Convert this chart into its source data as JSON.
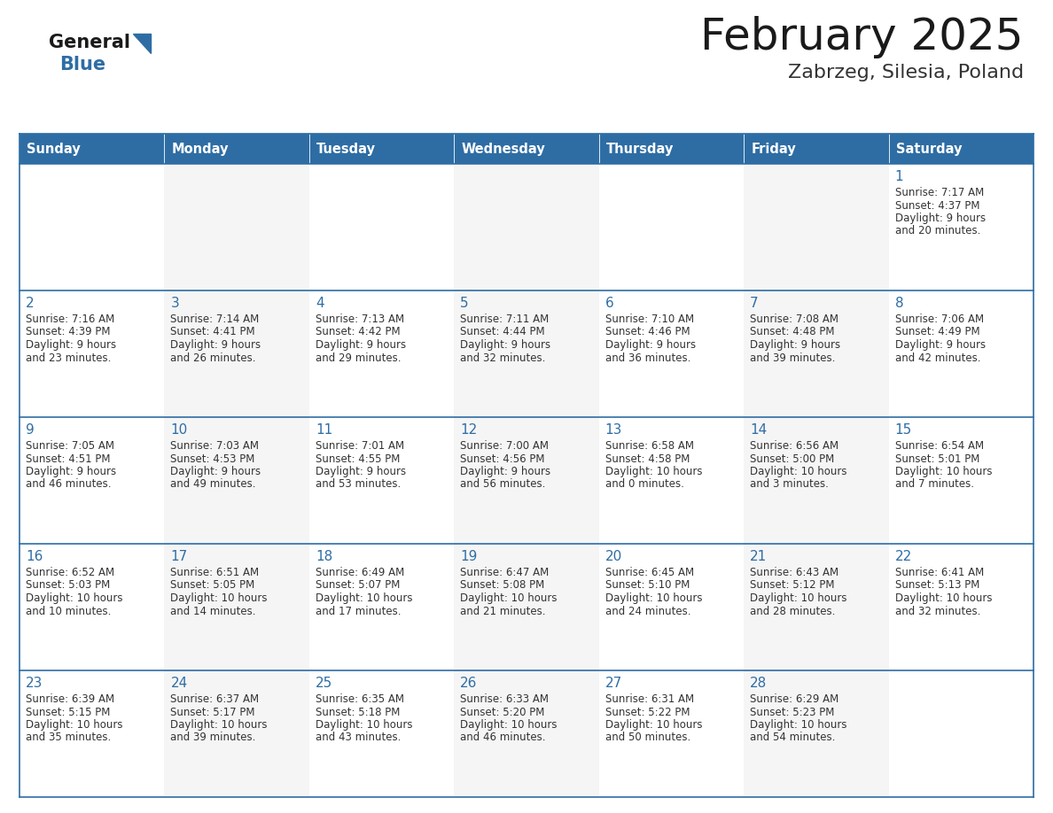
{
  "title": "February 2025",
  "subtitle": "Zabrzeg, Silesia, Poland",
  "days_of_week": [
    "Sunday",
    "Monday",
    "Tuesday",
    "Wednesday",
    "Thursday",
    "Friday",
    "Saturday"
  ],
  "header_bg": "#2E6DA4",
  "header_text": "#FFFFFF",
  "cell_bg": "#FFFFFF",
  "cell_bg_alt": "#F5F5F5",
  "day_number_color": "#2E6DA4",
  "info_text_color": "#333333",
  "border_color": "#2E6DA4",
  "title_color": "#1a1a1a",
  "subtitle_color": "#333333",
  "logo_general_color": "#1a1a1a",
  "logo_blue_color": "#2E6DA4",
  "calendar_data": [
    [
      null,
      null,
      null,
      null,
      null,
      null,
      {
        "day": 1,
        "sunrise": "7:17 AM",
        "sunset": "4:37 PM",
        "daylight": "9 hours and 20 minutes."
      }
    ],
    [
      {
        "day": 2,
        "sunrise": "7:16 AM",
        "sunset": "4:39 PM",
        "daylight": "9 hours and 23 minutes."
      },
      {
        "day": 3,
        "sunrise": "7:14 AM",
        "sunset": "4:41 PM",
        "daylight": "9 hours and 26 minutes."
      },
      {
        "day": 4,
        "sunrise": "7:13 AM",
        "sunset": "4:42 PM",
        "daylight": "9 hours and 29 minutes."
      },
      {
        "day": 5,
        "sunrise": "7:11 AM",
        "sunset": "4:44 PM",
        "daylight": "9 hours and 32 minutes."
      },
      {
        "day": 6,
        "sunrise": "7:10 AM",
        "sunset": "4:46 PM",
        "daylight": "9 hours and 36 minutes."
      },
      {
        "day": 7,
        "sunrise": "7:08 AM",
        "sunset": "4:48 PM",
        "daylight": "9 hours and 39 minutes."
      },
      {
        "day": 8,
        "sunrise": "7:06 AM",
        "sunset": "4:49 PM",
        "daylight": "9 hours and 42 minutes."
      }
    ],
    [
      {
        "day": 9,
        "sunrise": "7:05 AM",
        "sunset": "4:51 PM",
        "daylight": "9 hours and 46 minutes."
      },
      {
        "day": 10,
        "sunrise": "7:03 AM",
        "sunset": "4:53 PM",
        "daylight": "9 hours and 49 minutes."
      },
      {
        "day": 11,
        "sunrise": "7:01 AM",
        "sunset": "4:55 PM",
        "daylight": "9 hours and 53 minutes."
      },
      {
        "day": 12,
        "sunrise": "7:00 AM",
        "sunset": "4:56 PM",
        "daylight": "9 hours and 56 minutes."
      },
      {
        "day": 13,
        "sunrise": "6:58 AM",
        "sunset": "4:58 PM",
        "daylight": "10 hours and 0 minutes."
      },
      {
        "day": 14,
        "sunrise": "6:56 AM",
        "sunset": "5:00 PM",
        "daylight": "10 hours and 3 minutes."
      },
      {
        "day": 15,
        "sunrise": "6:54 AM",
        "sunset": "5:01 PM",
        "daylight": "10 hours and 7 minutes."
      }
    ],
    [
      {
        "day": 16,
        "sunrise": "6:52 AM",
        "sunset": "5:03 PM",
        "daylight": "10 hours and 10 minutes."
      },
      {
        "day": 17,
        "sunrise": "6:51 AM",
        "sunset": "5:05 PM",
        "daylight": "10 hours and 14 minutes."
      },
      {
        "day": 18,
        "sunrise": "6:49 AM",
        "sunset": "5:07 PM",
        "daylight": "10 hours and 17 minutes."
      },
      {
        "day": 19,
        "sunrise": "6:47 AM",
        "sunset": "5:08 PM",
        "daylight": "10 hours and 21 minutes."
      },
      {
        "day": 20,
        "sunrise": "6:45 AM",
        "sunset": "5:10 PM",
        "daylight": "10 hours and 24 minutes."
      },
      {
        "day": 21,
        "sunrise": "6:43 AM",
        "sunset": "5:12 PM",
        "daylight": "10 hours and 28 minutes."
      },
      {
        "day": 22,
        "sunrise": "6:41 AM",
        "sunset": "5:13 PM",
        "daylight": "10 hours and 32 minutes."
      }
    ],
    [
      {
        "day": 23,
        "sunrise": "6:39 AM",
        "sunset": "5:15 PM",
        "daylight": "10 hours and 35 minutes."
      },
      {
        "day": 24,
        "sunrise": "6:37 AM",
        "sunset": "5:17 PM",
        "daylight": "10 hours and 39 minutes."
      },
      {
        "day": 25,
        "sunrise": "6:35 AM",
        "sunset": "5:18 PM",
        "daylight": "10 hours and 43 minutes."
      },
      {
        "day": 26,
        "sunrise": "6:33 AM",
        "sunset": "5:20 PM",
        "daylight": "10 hours and 46 minutes."
      },
      {
        "day": 27,
        "sunrise": "6:31 AM",
        "sunset": "5:22 PM",
        "daylight": "10 hours and 50 minutes."
      },
      {
        "day": 28,
        "sunrise": "6:29 AM",
        "sunset": "5:23 PM",
        "daylight": "10 hours and 54 minutes."
      },
      null
    ]
  ]
}
